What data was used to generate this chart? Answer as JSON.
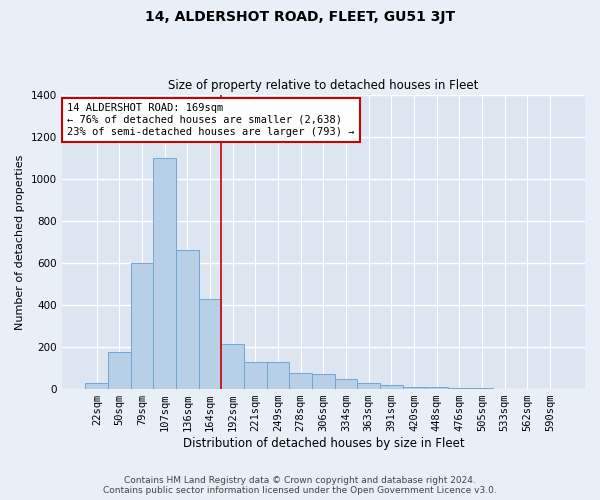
{
  "title": "14, ALDERSHOT ROAD, FLEET, GU51 3JT",
  "subtitle": "Size of property relative to detached houses in Fleet",
  "xlabel": "Distribution of detached houses by size in Fleet",
  "ylabel": "Number of detached properties",
  "categories": [
    "22sqm",
    "50sqm",
    "79sqm",
    "107sqm",
    "136sqm",
    "164sqm",
    "192sqm",
    "221sqm",
    "249sqm",
    "278sqm",
    "306sqm",
    "334sqm",
    "363sqm",
    "391sqm",
    "420sqm",
    "448sqm",
    "476sqm",
    "505sqm",
    "533sqm",
    "562sqm",
    "590sqm"
  ],
  "values": [
    28,
    178,
    600,
    1100,
    660,
    430,
    215,
    130,
    130,
    75,
    70,
    48,
    28,
    18,
    10,
    8,
    5,
    3,
    2,
    1,
    1
  ],
  "bar_color": "#b8cfe8",
  "bar_edgecolor": "#6fa8d4",
  "vline_x_index": 5.5,
  "vline_color": "#cc0000",
  "annotation_text": "14 ALDERSHOT ROAD: 169sqm\n← 76% of detached houses are smaller (2,638)\n23% of semi-detached houses are larger (793) →",
  "annotation_box_color": "#ffffff",
  "annotation_box_edgecolor": "#cc0000",
  "ylim": [
    0,
    1400
  ],
  "yticks": [
    0,
    200,
    400,
    600,
    800,
    1000,
    1200,
    1400
  ],
  "plot_bg_color": "#dde6f0",
  "fig_bg_color": "#e8eff7",
  "grid_color": "#ffffff",
  "footer1": "Contains HM Land Registry data © Crown copyright and database right 2024.",
  "footer2": "Contains public sector information licensed under the Open Government Licence v3.0.",
  "title_fontsize": 10,
  "subtitle_fontsize": 8.5,
  "ylabel_fontsize": 8,
  "xlabel_fontsize": 8.5,
  "tick_fontsize": 7.5,
  "footer_fontsize": 6.5,
  "annot_fontsize": 7.5
}
